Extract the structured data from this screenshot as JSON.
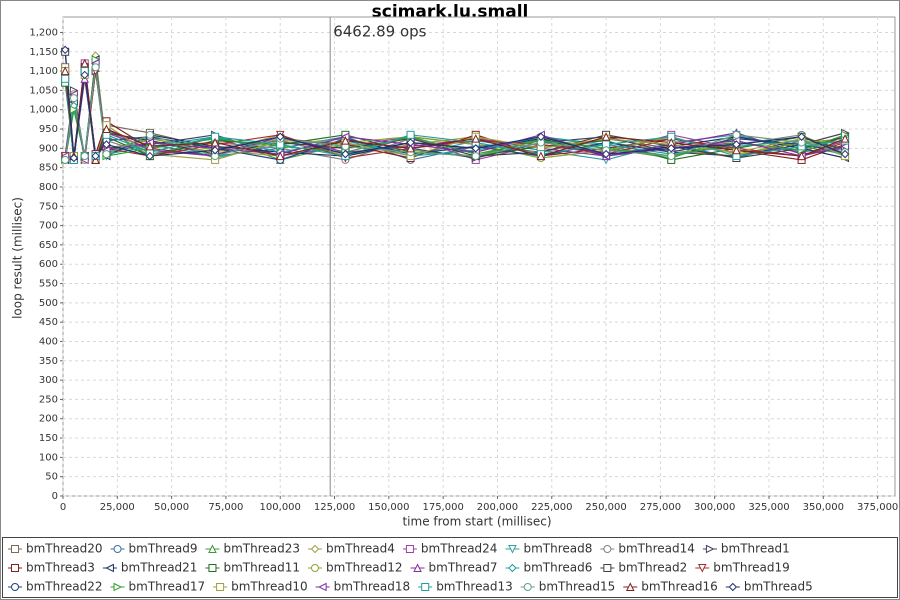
{
  "chart_data": {
    "type": "line",
    "title": "scimark.lu.small",
    "x_label": "time from start (millisec)",
    "y_label": "loop result (millisec)",
    "annotation": {
      "text": "6462.89 ops",
      "x": 123000
    },
    "xlim": [
      0,
      383000
    ],
    "ylim": [
      0,
      1240
    ],
    "grid": true,
    "xticks": [
      0,
      {
        "value": 25000,
        "label": "25,000"
      },
      {
        "value": 50000,
        "label": "50,000"
      },
      {
        "value": 75000,
        "label": "75,000"
      },
      {
        "value": 100000,
        "label": "100,000"
      },
      {
        "value": 125000,
        "label": "125,000"
      },
      {
        "value": 150000,
        "label": "150,000"
      },
      {
        "value": 175000,
        "label": "175,000"
      },
      {
        "value": 200000,
        "label": "200,000"
      },
      {
        "value": 225000,
        "label": "225,000"
      },
      {
        "value": 250000,
        "label": "250,000"
      },
      {
        "value": 275000,
        "label": "275,000"
      },
      {
        "value": 300000,
        "label": "300,000"
      },
      {
        "value": 325000,
        "label": "325,000"
      },
      {
        "value": 350000,
        "label": "350,000"
      },
      {
        "value": 375000,
        "label": "375,000"
      }
    ],
    "yticks": [
      0,
      50,
      100,
      150,
      200,
      250,
      300,
      350,
      400,
      450,
      500,
      550,
      600,
      650,
      700,
      750,
      800,
      850,
      900,
      950,
      {
        "value": 1000,
        "label": "1,000"
      },
      {
        "value": 1050,
        "label": "1,050"
      },
      {
        "value": 1100,
        "label": "1,100"
      },
      {
        "value": 1150,
        "label": "1,150"
      },
      {
        "value": 1200,
        "label": "1,200"
      }
    ],
    "x": [
      1000,
      5000,
      10000,
      15000,
      20000,
      40000,
      70000,
      100000,
      130000,
      160000,
      190000,
      220000,
      250000,
      280000,
      310000,
      340000,
      360000
    ],
    "series": [
      {
        "name": "bmThread20",
        "color": "#7a6a5a",
        "marker": "square",
        "values": [
          1110,
          870,
          1100,
          880,
          960,
          940,
          900,
          920,
          880,
          930,
          910,
          890,
          925,
          900,
          915,
          890,
          930
        ]
      },
      {
        "name": "bmThread9",
        "color": "#3a6ea5",
        "marker": "circle",
        "values": [
          870,
          1040,
          880,
          1120,
          890,
          910,
          880,
          900,
          930,
          870,
          905,
          920,
          880,
          910,
          875,
          920,
          900
        ]
      },
      {
        "name": "bmThread23",
        "color": "#3c9a3c",
        "marker": "triangle",
        "values": [
          1100,
          880,
          1110,
          870,
          950,
          880,
          930,
          870,
          910,
          895,
          880,
          925,
          900,
          875,
          930,
          905,
          885
        ]
      },
      {
        "name": "bmThread4",
        "color": "#a0a040",
        "marker": "diamond",
        "values": [
          880,
          1030,
          870,
          1140,
          900,
          920,
          890,
          935,
          880,
          910,
          930,
          880,
          915,
          895,
          880,
          925,
          910
        ]
      },
      {
        "name": "bmThread24",
        "color": "#a040a0",
        "marker": "square",
        "values": [
          1090,
          870,
          1120,
          880,
          940,
          900,
          925,
          880,
          905,
          930,
          870,
          910,
          890,
          935,
          900,
          880,
          920
        ]
      },
      {
        "name": "bmThread8",
        "color": "#30a0a0",
        "marker": "triangle-down",
        "values": [
          870,
          1000,
          880,
          1100,
          880,
          930,
          875,
          910,
          925,
          880,
          920,
          895,
          870,
          915,
          935,
          890,
          905
        ]
      },
      {
        "name": "bmThread14",
        "color": "#808080",
        "marker": "circle",
        "values": [
          1080,
          880,
          1090,
          870,
          920,
          885,
          915,
          900,
          870,
          925,
          890,
          930,
          905,
          880,
          910,
          935,
          880
        ]
      },
      {
        "name": "bmThread1",
        "color": "#404060",
        "marker": "triangle-right",
        "values": [
          880,
          1050,
          870,
          1100,
          900,
          910,
          935,
          880,
          920,
          900,
          875,
          915,
          930,
          890,
          880,
          910,
          940
        ]
      },
      {
        "name": "bmThread3",
        "color": "#802020",
        "marker": "square",
        "values": [
          1100,
          870,
          1110,
          885,
          970,
          900,
          880,
          925,
          910,
          875,
          935,
          880,
          900,
          925,
          895,
          870,
          910
        ]
      },
      {
        "name": "bmThread21",
        "color": "#203060",
        "marker": "triangle-left",
        "values": [
          870,
          1020,
          880,
          1130,
          880,
          935,
          905,
          890,
          880,
          915,
          900,
          925,
          880,
          905,
          930,
          900,
          875
        ]
      },
      {
        "name": "bmThread11",
        "color": "#207020",
        "marker": "square",
        "values": [
          1070,
          880,
          1100,
          870,
          930,
          880,
          920,
          910,
          935,
          890,
          880,
          905,
          920,
          870,
          900,
          930,
          895
        ]
      },
      {
        "name": "bmThread12",
        "color": "#90a030",
        "marker": "circle",
        "values": [
          880,
          1040,
          870,
          1110,
          890,
          925,
          895,
          880,
          915,
          930,
          910,
          875,
          895,
          930,
          885,
          915,
          925
        ]
      },
      {
        "name": "bmThread7",
        "color": "#8030a0",
        "marker": "triangle",
        "values": [
          1100,
          875,
          1080,
          880,
          950,
          895,
          880,
          930,
          890,
          905,
          925,
          900,
          880,
          910,
          940,
          885,
          900
        ]
      },
      {
        "name": "bmThread6",
        "color": "#20a0a0",
        "marker": "diamond",
        "values": [
          875,
          1010,
          880,
          1120,
          885,
          905,
          930,
          890,
          920,
          880,
          895,
          930,
          910,
          885,
          905,
          920,
          880
        ]
      },
      {
        "name": "bmThread2",
        "color": "#404040",
        "marker": "square",
        "values": [
          1150,
          880,
          1100,
          870,
          940,
          920,
          885,
          915,
          900,
          925,
          880,
          890,
          935,
          905,
          875,
          900,
          930
        ]
      },
      {
        "name": "bmThread19",
        "color": "#a03030",
        "marker": "triangle-down",
        "values": [
          880,
          1030,
          875,
          1100,
          900,
          880,
          910,
          935,
          875,
          900,
          920,
          910,
          885,
          925,
          900,
          880,
          915
        ]
      },
      {
        "name": "bmThread22",
        "color": "#204080",
        "marker": "circle",
        "values": [
          1090,
          870,
          1110,
          880,
          920,
          930,
          900,
          870,
          925,
          885,
          905,
          880,
          915,
          890,
          925,
          910,
          890
        ]
      },
      {
        "name": "bmThread17",
        "color": "#30a030",
        "marker": "triangle-right",
        "values": [
          870,
          1000,
          880,
          1130,
          880,
          900,
          925,
          905,
          890,
          930,
          885,
          920,
          900,
          880,
          915,
          895,
          935
        ]
      },
      {
        "name": "bmThread10",
        "color": "#a0a040",
        "marker": "square",
        "values": [
          1100,
          880,
          1090,
          875,
          960,
          885,
          870,
          920,
          915,
          880,
          930,
          900,
          925,
          910,
          890,
          925,
          880
        ]
      },
      {
        "name": "bmThread18",
        "color": "#8030a0",
        "marker": "triangle-left",
        "values": [
          880,
          1040,
          870,
          1120,
          895,
          915,
          900,
          885,
          930,
          910,
          890,
          935,
          880,
          900,
          920,
          880,
          905
        ]
      },
      {
        "name": "bmThread13",
        "color": "#20a0a0",
        "marker": "square",
        "values": [
          1080,
          870,
          1100,
          880,
          935,
          890,
          930,
          910,
          880,
          935,
          915,
          885,
          910,
          930,
          880,
          905,
          920
        ]
      },
      {
        "name": "bmThread15",
        "color": "#60a080",
        "marker": "circle",
        "values": [
          870,
          1030,
          880,
          1110,
          885,
          935,
          880,
          925,
          905,
          890,
          880,
          915,
          895,
          880,
          935,
          915,
          890
        ]
      },
      {
        "name": "bmThread16",
        "color": "#802020",
        "marker": "triangle",
        "values": [
          1100,
          880,
          1120,
          870,
          950,
          905,
          915,
          880,
          920,
          900,
          925,
          880,
          930,
          915,
          895,
          880,
          925
        ]
      },
      {
        "name": "bmThread5",
        "color": "#203070",
        "marker": "diamond",
        "values": [
          1155,
          875,
          1090,
          880,
          910,
          880,
          895,
          930,
          885,
          915,
          900,
          930,
          885,
          900,
          910,
          930,
          885
        ]
      }
    ]
  }
}
